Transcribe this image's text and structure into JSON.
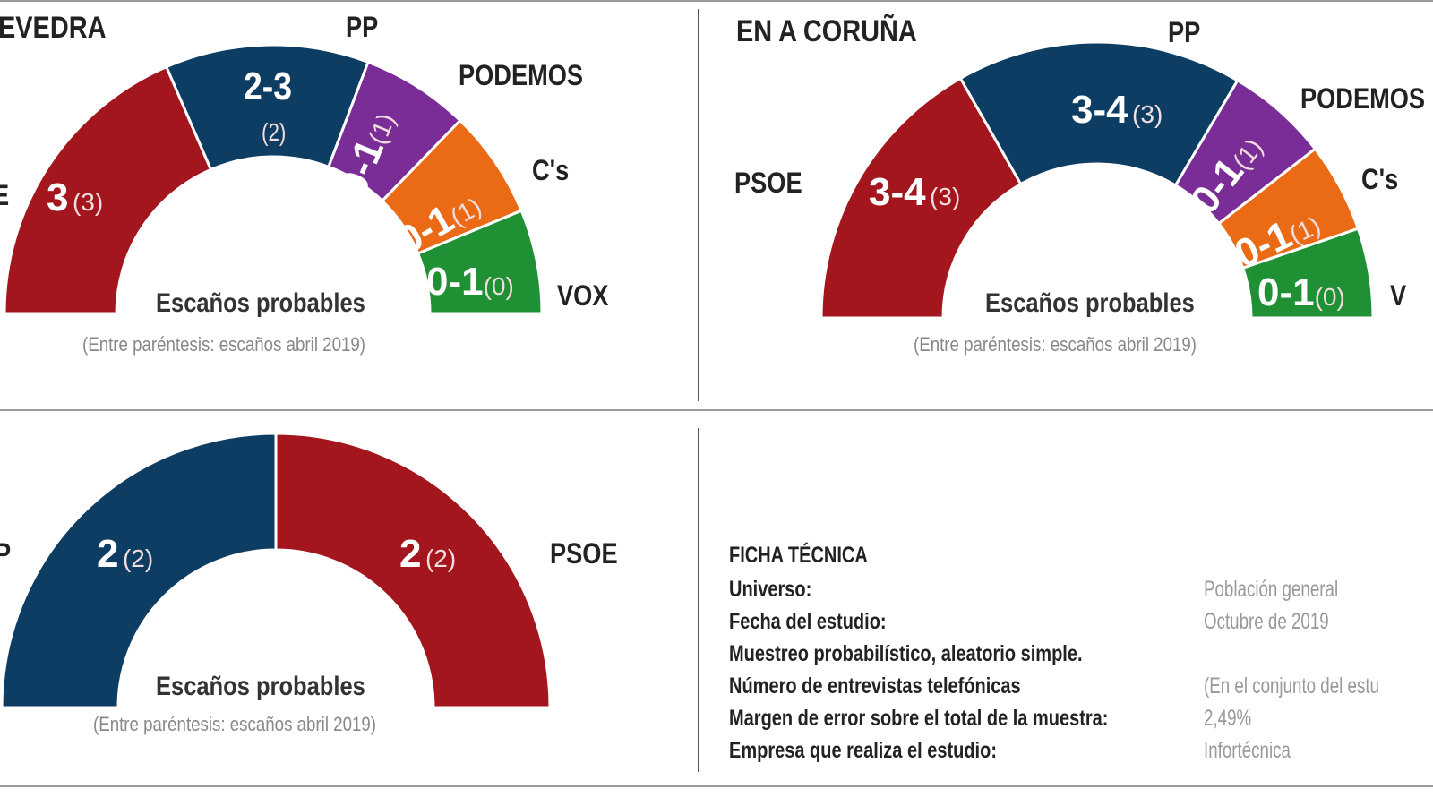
{
  "chart_data": [
    {
      "type": "pie",
      "subtype": "hemicycle",
      "title": "EVEDRA",
      "caption": "Escaños probables",
      "note": "(Entre paréntesis: escaños abril 2019)",
      "series": [
        {
          "name": "E",
          "seats": "3",
          "prev": "(3)",
          "share": 0.37,
          "color": "#a3161d"
        },
        {
          "name": "PP",
          "seats": "2-3",
          "prev": "(2)",
          "share": 0.245,
          "color": "#0e3d63"
        },
        {
          "name": "PODEMOS",
          "seats": "0-1",
          "prev": "(1)",
          "share": 0.13,
          "color": "#7b2d97"
        },
        {
          "name": "C's",
          "seats": "0-1",
          "prev": "(1)",
          "share": 0.13,
          "color": "#ea6a16"
        },
        {
          "name": "VOX",
          "seats": "0-1",
          "prev": "(0)",
          "share": 0.125,
          "color": "#1f9134"
        }
      ]
    },
    {
      "type": "pie",
      "subtype": "hemicycle",
      "title": "EN A CORUÑA",
      "caption": "Escaños probables",
      "note": "(Entre paréntesis: escaños abril 2019)",
      "series": [
        {
          "name": "PSOE",
          "seats": "3-4",
          "prev": "(3)",
          "share": 0.335,
          "color": "#a3161d"
        },
        {
          "name": "PP",
          "seats": "3-4",
          "prev": "(3)",
          "share": 0.335,
          "color": "#0e3d63"
        },
        {
          "name": "PODEMOS",
          "seats": "0-1",
          "prev": "(1)",
          "share": 0.12,
          "color": "#7b2d97"
        },
        {
          "name": "C's",
          "seats": "0-1",
          "prev": "(1)",
          "share": 0.105,
          "color": "#ea6a16"
        },
        {
          "name": "V",
          "seats": "0-1",
          "prev": "(0)",
          "share": 0.105,
          "color": "#1f9134"
        }
      ]
    },
    {
      "type": "pie",
      "subtype": "hemicycle",
      "title": "",
      "caption": "Escaños probables",
      "note": "(Entre paréntesis: escaños abril 2019)",
      "series": [
        {
          "name": "P",
          "seats": "2",
          "prev": "(2)",
          "share": 0.5,
          "color": "#0e3d63"
        },
        {
          "name": "PSOE",
          "seats": "2",
          "prev": "(2)",
          "share": 0.5,
          "color": "#a3161d"
        }
      ]
    }
  ],
  "ficha": {
    "title": "FICHA TÉCNICA",
    "rows": [
      {
        "label": "Universo:",
        "value": "Población general"
      },
      {
        "label": "Fecha del estudio:",
        "value": "Octubre de 2019"
      },
      {
        "label": "Muestreo probabilístico, aleatorio simple.",
        "value": ""
      },
      {
        "label": "Número de entrevistas telefónicas",
        "value": "(En el conjunto del estu"
      },
      {
        "label": "Margen de error sobre el total de la muestra:",
        "value": "2,49%"
      },
      {
        "label": "Empresa que realiza el estudio:",
        "value": "Infortécnica"
      }
    ]
  }
}
